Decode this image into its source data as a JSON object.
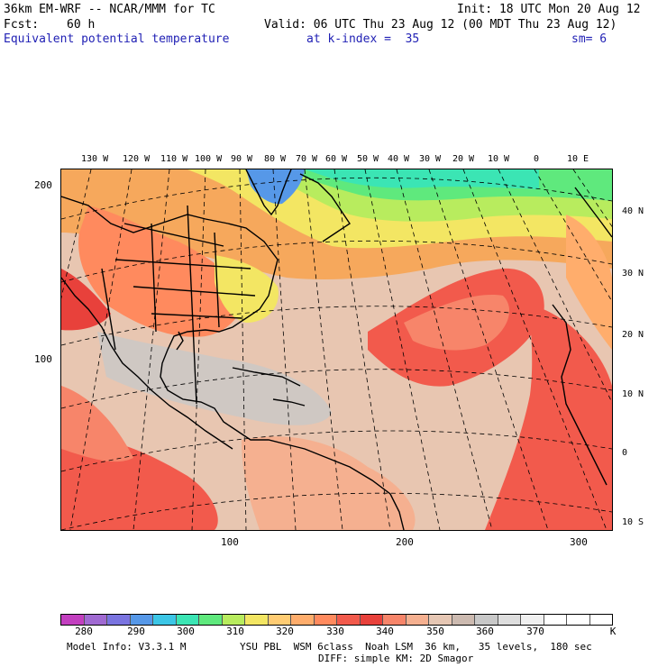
{
  "header": {
    "model": "36km EM-WRF -- NCAR/MMM for TC",
    "init": "Init: 18 UTC Mon 20 Aug 12",
    "fcst_label": "Fcst:",
    "fcst_value": "60 h",
    "valid": "Valid: 06 UTC Thu 23 Aug 12 (00 MDT Thu 23 Aug 12)",
    "field": "Equivalent potential temperature",
    "level": "at k-index =  35",
    "smoothing": "sm= 6"
  },
  "map": {
    "top_longitudes": [
      "130 W",
      "120 W",
      "110 W",
      "100 W",
      "90 W",
      "80 W",
      "70 W",
      "60 W",
      "50 W",
      "40 W",
      "30 W",
      "20 W",
      "10 W",
      "0",
      "10 E"
    ],
    "right_latitudes": [
      "40 N",
      "30 N",
      "20 N",
      "10 N",
      "0",
      "10 S"
    ],
    "left_axis": [
      "200",
      "100"
    ],
    "bottom_axis": [
      "100",
      "200",
      "300"
    ]
  },
  "colorbar": {
    "colors": [
      "#c23fbf",
      "#a06ad2",
      "#7a74e0",
      "#5698e8",
      "#3cc6e6",
      "#3be5b4",
      "#5fe97d",
      "#b8ec5e",
      "#f3e663",
      "#ffcc73",
      "#ffad6c",
      "#ff8a5e",
      "#f25a4c",
      "#e8413b",
      "#f7856a",
      "#f5b090",
      "#e6c7b4",
      "#ccbab0",
      "#c8c8c8",
      "#dedede",
      "#f0f0f0",
      "#ffffff",
      "#ffffff",
      "#ffffff"
    ],
    "labels": [
      "280",
      "290",
      "300",
      "310",
      "320",
      "330",
      "340",
      "350",
      "360",
      "370"
    ],
    "unit": "K"
  },
  "footer": {
    "model_info": "Model Info: V3.3.1 M",
    "physics": "YSU PBL  WSM 6class  Noah LSM  36 km,   35 levels,  180 sec",
    "diffusion": "DIFF: simple KM: 2D Smagor"
  }
}
